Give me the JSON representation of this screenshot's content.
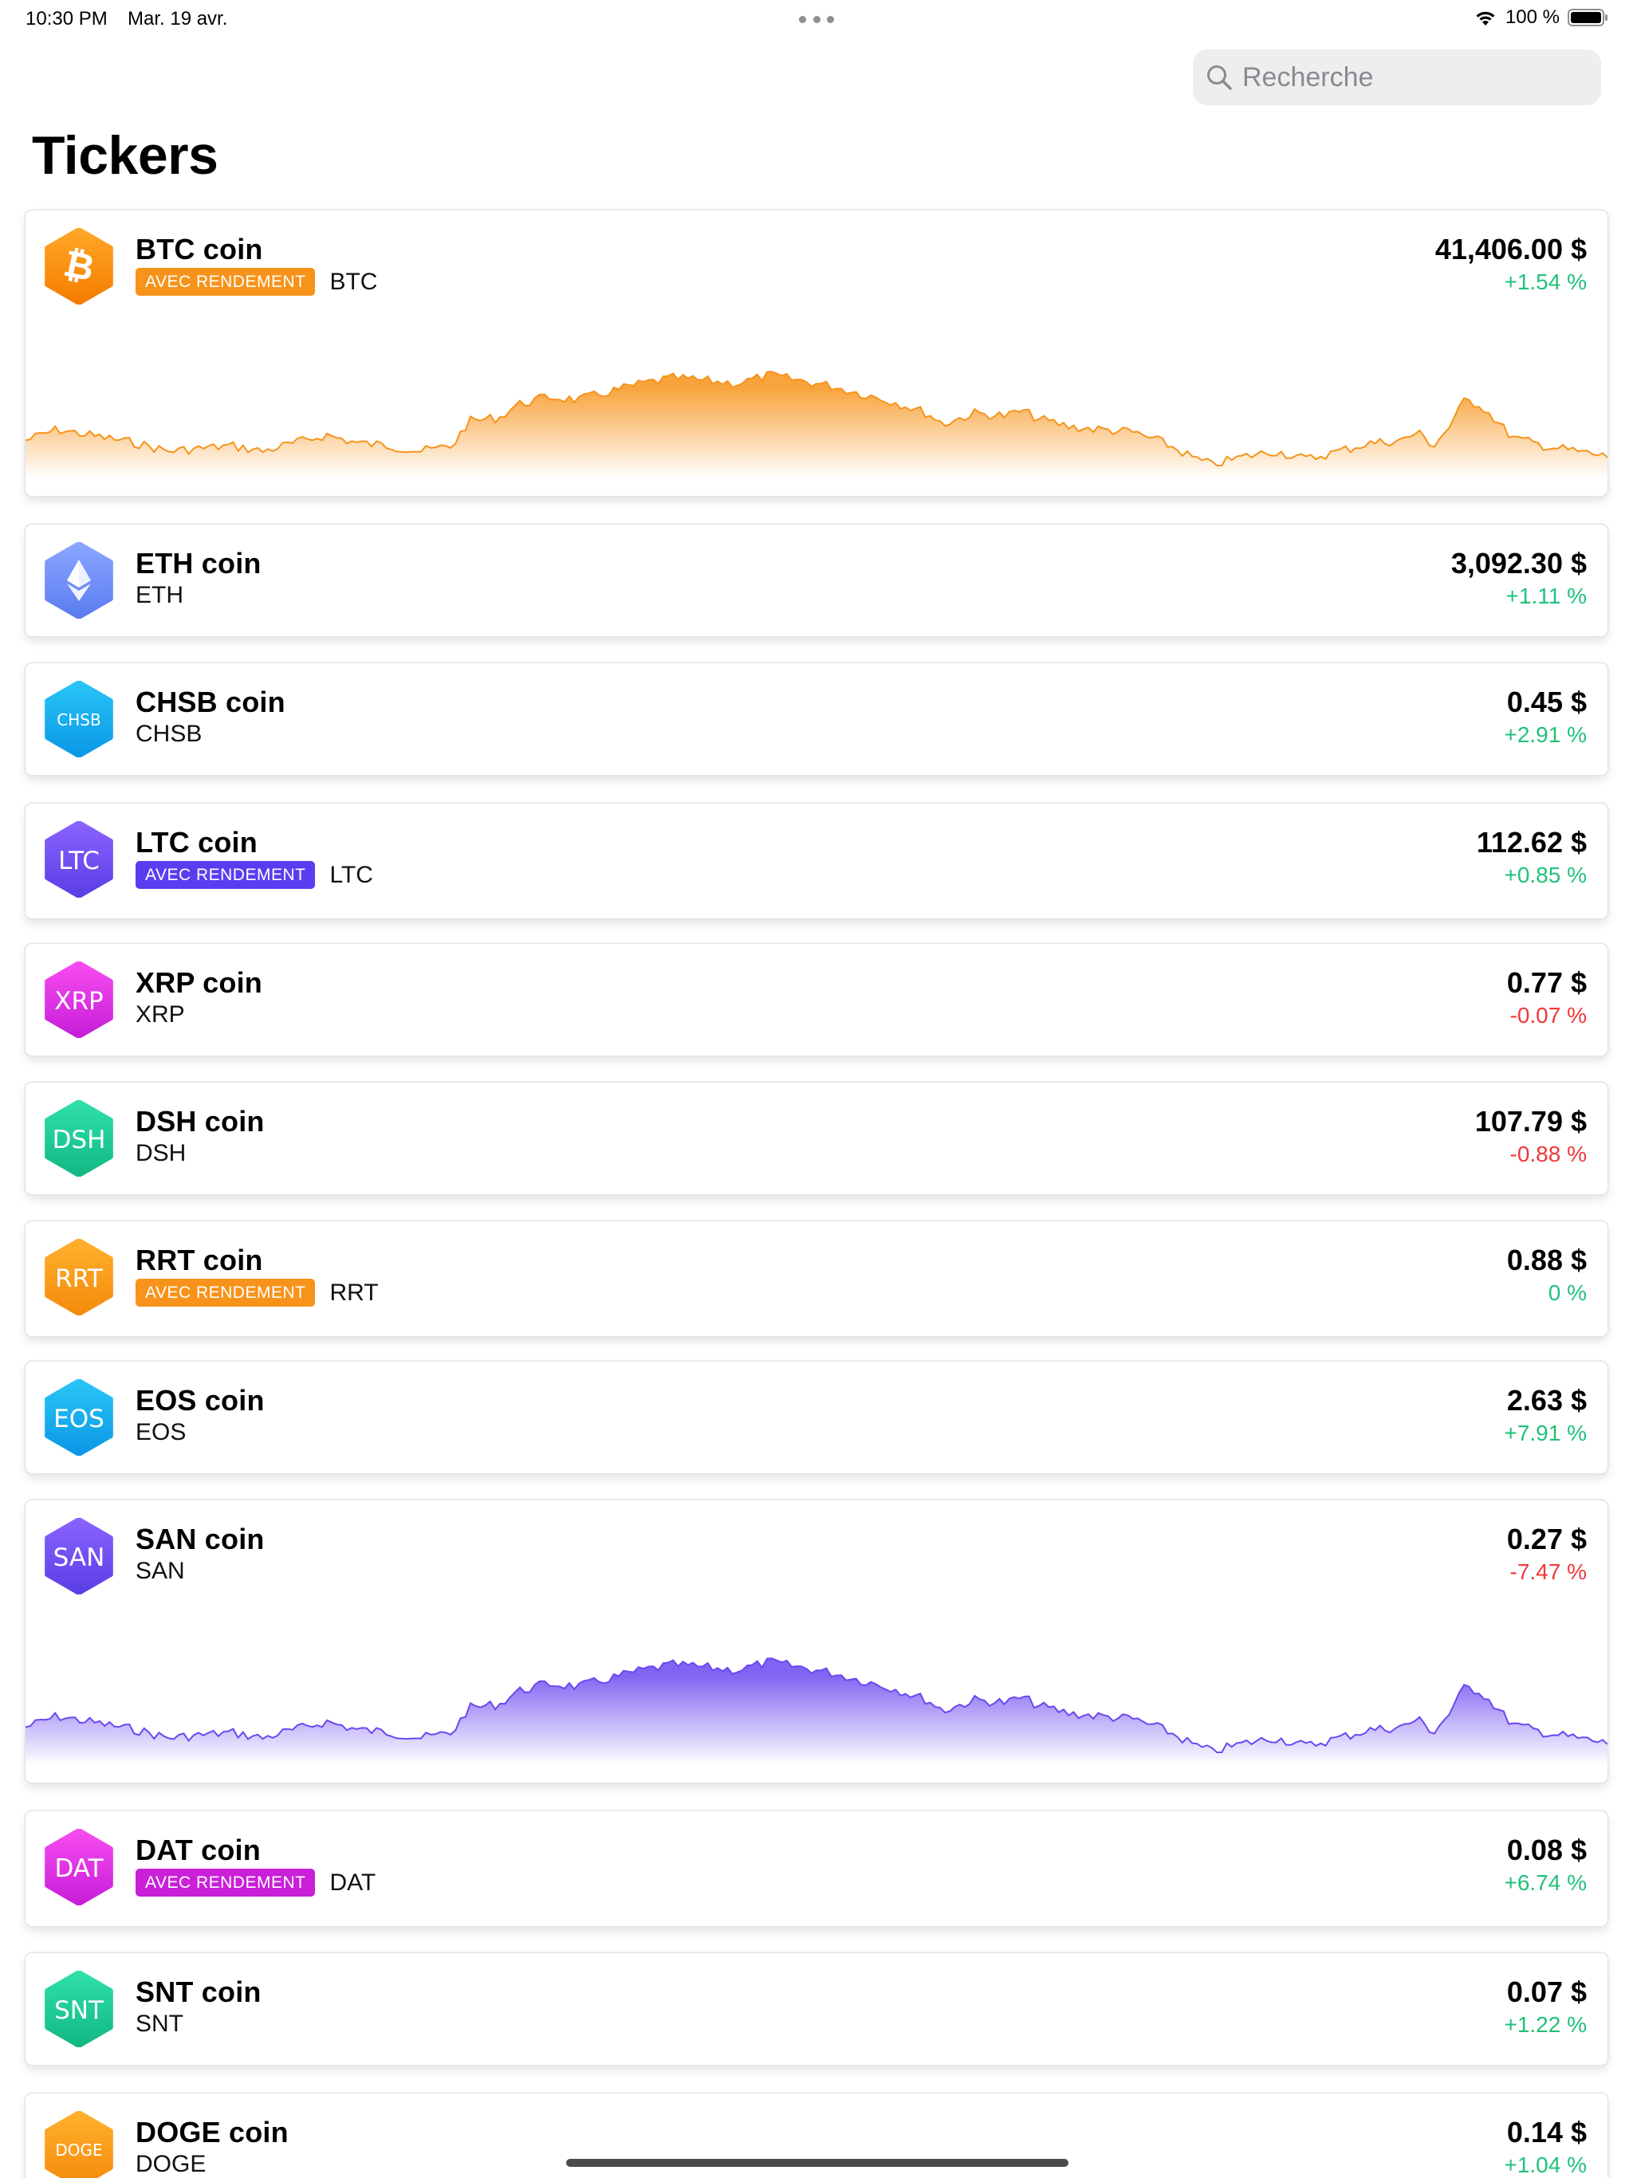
{
  "status": {
    "time": "10:30 PM",
    "date": "Mar. 19 avr.",
    "battery": "100 %"
  },
  "search": {
    "placeholder": "Recherche"
  },
  "title": "Tickers",
  "badge_label": "AVEC RENDEMENT",
  "colors": {
    "positive": "#21c17a",
    "negative": "#f0383a",
    "btc_chart": "#f7931a",
    "san_chart": "#6a48f0"
  },
  "tickers": [
    {
      "name": "BTC coin",
      "symbol": "BTC",
      "price": "41,406.00 $",
      "change": "+1.54 %",
      "trend": "pos",
      "badge": true,
      "badge_color": "#f7931a",
      "icon": "bitcoin-icon",
      "icon_label": "",
      "icon_colors": [
        "#ffa726",
        "#f57c00"
      ],
      "chart": true,
      "chart_color": "#f7931a"
    },
    {
      "name": "ETH coin",
      "symbol": "ETH",
      "price": "3,092.30 $",
      "change": "+1.11 %",
      "trend": "pos",
      "badge": false,
      "icon": "ethereum-icon",
      "icon_label": "",
      "icon_colors": [
        "#8aa6ff",
        "#5b7cf0"
      ],
      "chart": false
    },
    {
      "name": "CHSB coin",
      "symbol": "CHSB",
      "price": "0.45 $",
      "change": "+2.91 %",
      "trend": "pos",
      "badge": false,
      "icon": "chsb-icon",
      "icon_label": "CHSB",
      "icon_colors": [
        "#29c5f6",
        "#0a98e6"
      ],
      "chart": false
    },
    {
      "name": "LTC coin",
      "symbol": "LTC",
      "price": "112.62 $",
      "change": "+0.85 %",
      "trend": "pos",
      "badge": true,
      "badge_color": "#5b3cf0",
      "icon": "ltc-icon",
      "icon_label": "LTC",
      "icon_colors": [
        "#8a63ff",
        "#5b3ee6"
      ],
      "chart": false
    },
    {
      "name": "XRP coin",
      "symbol": "XRP",
      "price": "0.77 $",
      "change": "-0.07 %",
      "trend": "neg",
      "badge": false,
      "icon": "xrp-icon",
      "icon_label": "XRP",
      "icon_colors": [
        "#f74cf0",
        "#c61ed8"
      ],
      "chart": false
    },
    {
      "name": "DSH coin",
      "symbol": "DSH",
      "price": "107.79 $",
      "change": "-0.88 %",
      "trend": "neg",
      "badge": false,
      "icon": "dsh-icon",
      "icon_label": "DSH",
      "icon_colors": [
        "#2fe0a8",
        "#12b884"
      ],
      "chart": false
    },
    {
      "name": "RRT coin",
      "symbol": "RRT",
      "price": "0.88 $",
      "change": "0 %",
      "trend": "pos",
      "badge": true,
      "badge_color": "#f7931a",
      "icon": "rrt-icon",
      "icon_label": "RRT",
      "icon_colors": [
        "#ffb02e",
        "#f58a0a"
      ],
      "chart": false
    },
    {
      "name": "EOS coin",
      "symbol": "EOS",
      "price": "2.63 $",
      "change": "+7.91 %",
      "trend": "pos",
      "badge": false,
      "icon": "eos-icon",
      "icon_label": "EOS",
      "icon_colors": [
        "#29c5f6",
        "#0a98e6"
      ],
      "chart": false
    },
    {
      "name": "SAN coin",
      "symbol": "SAN",
      "price": "0.27 $",
      "change": "-7.47 %",
      "trend": "neg",
      "badge": false,
      "icon": "san-icon",
      "icon_label": "SAN",
      "icon_colors": [
        "#8a63ff",
        "#5b3ee6"
      ],
      "chart": true,
      "chart_color": "#6a48f0"
    },
    {
      "name": "DAT coin",
      "symbol": "DAT",
      "price": "0.08 $",
      "change": "+6.74 %",
      "trend": "pos",
      "badge": true,
      "badge_color": "#c920d8",
      "icon": "dat-icon",
      "icon_label": "DAT",
      "icon_colors": [
        "#f74cf0",
        "#c61ed8"
      ],
      "chart": false
    },
    {
      "name": "SNT coin",
      "symbol": "SNT",
      "price": "0.07 $",
      "change": "+1.22 %",
      "trend": "pos",
      "badge": false,
      "icon": "snt-icon",
      "icon_label": "SNT",
      "icon_colors": [
        "#2fe0a8",
        "#12b884"
      ],
      "chart": false
    },
    {
      "name": "DOGE coin",
      "symbol": "DOGE",
      "price": "0.14 $",
      "change": "+1.04 %",
      "trend": "pos",
      "badge": false,
      "icon": "doge-icon",
      "icon_label": "DOGE",
      "icon_colors": [
        "#ffb02e",
        "#f58a0a"
      ],
      "chart": false
    }
  ]
}
